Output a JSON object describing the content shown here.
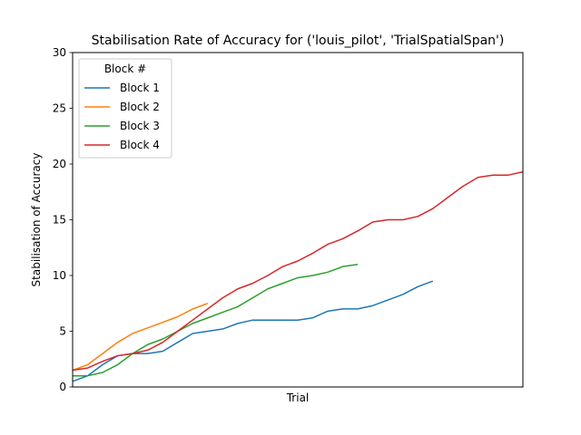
{
  "chart_data": {
    "type": "line",
    "title": "Stabilisation Rate of Accuracy for ('louis_pilot', 'TrialSpatialSpan')",
    "xlabel": "Trial",
    "ylabel": "Stabilisation of Accuracy",
    "xlim": [
      0,
      30
    ],
    "ylim": [
      0,
      30
    ],
    "yticks": [
      0,
      5,
      10,
      15,
      20,
      25,
      30
    ],
    "grid": false,
    "legend": {
      "title": "Block #",
      "placement": "top-left"
    },
    "series": [
      {
        "name": "Block 1",
        "color": "#1f77b4",
        "x": [
          0,
          1,
          2,
          3,
          4,
          5,
          6,
          7,
          8,
          9,
          10,
          11,
          12,
          13,
          14,
          15,
          16,
          17,
          18,
          19,
          20,
          21,
          22,
          23,
          24
        ],
        "values": [
          0.5,
          1.0,
          2.0,
          2.8,
          3.0,
          3.0,
          3.2,
          4.0,
          4.8,
          5.0,
          5.2,
          5.7,
          6.0,
          6.0,
          6.0,
          6.0,
          6.2,
          6.8,
          7.0,
          7.0,
          7.3,
          7.8,
          8.3,
          9.0,
          9.5
        ]
      },
      {
        "name": "Block 2",
        "color": "#ff7f0e",
        "x": [
          0,
          1,
          2,
          3,
          4,
          5,
          6,
          7,
          8,
          9
        ],
        "values": [
          1.5,
          2.0,
          3.0,
          4.0,
          4.8,
          5.3,
          5.8,
          6.3,
          7.0,
          7.5
        ]
      },
      {
        "name": "Block 3",
        "color": "#2ca02c",
        "x": [
          0,
          1,
          2,
          3,
          4,
          5,
          6,
          7,
          8,
          9,
          10,
          11,
          12,
          13,
          14,
          15,
          16,
          17,
          18,
          19
        ],
        "values": [
          1.0,
          1.0,
          1.3,
          2.0,
          3.0,
          3.8,
          4.3,
          5.0,
          5.7,
          6.2,
          6.7,
          7.2,
          8.0,
          8.8,
          9.3,
          9.8,
          10.0,
          10.3,
          10.8,
          11.0
        ]
      },
      {
        "name": "Block 4",
        "color": "#d62728",
        "x": [
          0,
          1,
          2,
          3,
          4,
          5,
          6,
          7,
          8,
          9,
          10,
          11,
          12,
          13,
          14,
          15,
          16,
          17,
          18,
          19,
          20,
          21,
          22,
          23,
          24,
          25,
          26,
          27,
          28,
          29,
          30
        ],
        "values": [
          1.5,
          1.7,
          2.3,
          2.8,
          3.0,
          3.3,
          4.0,
          5.0,
          6.0,
          7.0,
          8.0,
          8.8,
          9.3,
          10.0,
          10.8,
          11.3,
          12.0,
          12.8,
          13.3,
          14.0,
          14.8,
          15.0,
          15.0,
          15.3,
          16.0,
          17.0,
          18.0,
          18.8,
          19.0,
          19.0,
          19.3
        ]
      }
    ]
  }
}
